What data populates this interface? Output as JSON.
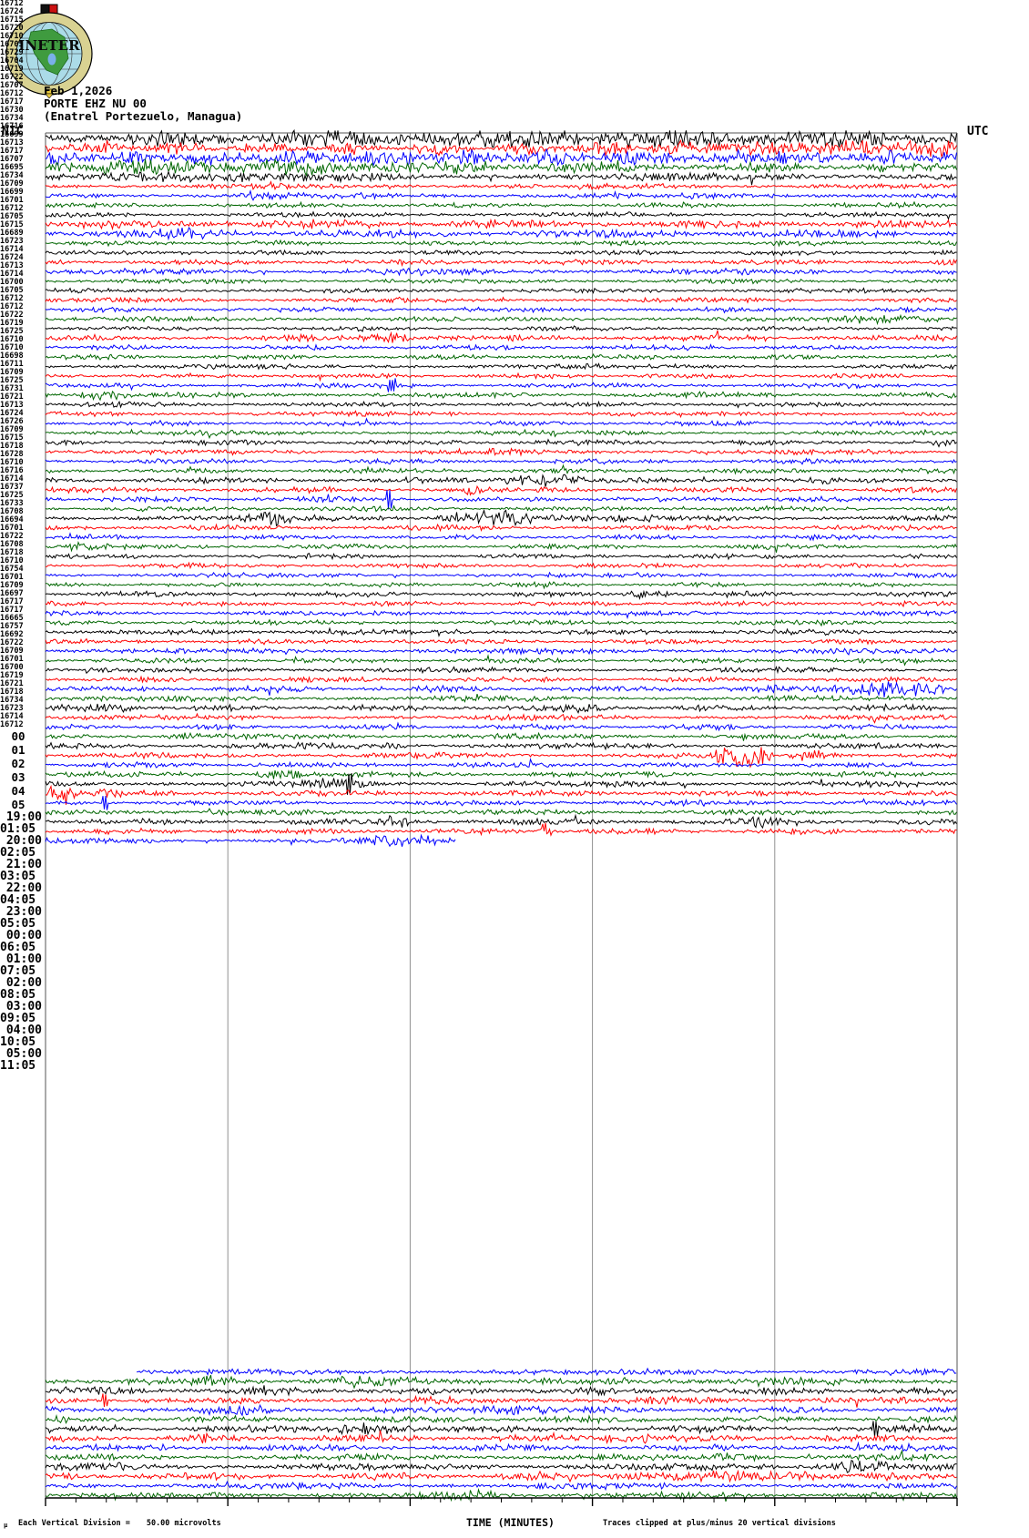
{
  "logo": {
    "text": "INETER"
  },
  "header": {
    "date": "Feb 1,2026",
    "station": "PORTE EHZ NU 00",
    "location": "(Enatrel Portezuelo, Managua)",
    "tz_left": "NIC",
    "tz_right": "UTC"
  },
  "footer": {
    "units_glyph": "µ",
    "scale_label": "Each Vertical Division =",
    "scale_value": "50.00 microvolts",
    "axis_title": "TIME (MINUTES)",
    "clip_note": "Traces clipped at plus/minus 20 vertical divisions"
  },
  "chart_data": {
    "type": "line",
    "subtype": "helicorder",
    "title": "PORTE EHZ NU 00",
    "subtitle": "(Enatrel Portezuelo, Managua)",
    "date": "Feb 1,2026",
    "xlabel": "TIME (MINUTES)",
    "x_ticks": [
      "00",
      "01",
      "02",
      "03",
      "04",
      "05"
    ],
    "x_range_minutes": [
      0,
      5
    ],
    "minor_ticks_per_major": 6,
    "left_timezone": "NIC",
    "right_timezone": "UTC",
    "palette": [
      "#000000",
      "#ff0000",
      "#0000ff",
      "#006600"
    ],
    "gridline_color": "#909090",
    "hour_labels": [
      {
        "row": 12,
        "left": "19:00",
        "right": "01:05"
      },
      {
        "row": 24,
        "left": "20:00",
        "right": "02:05"
      },
      {
        "row": 36,
        "left": "21:00",
        "right": "03:05"
      },
      {
        "row": 48,
        "left": "22:00",
        "right": "04:05"
      },
      {
        "row": 60,
        "left": "23:00",
        "right": "05:05"
      },
      {
        "row": 72,
        "left": "00:00",
        "right": "06:05"
      },
      {
        "row": 84,
        "left": "01:00",
        "right": "07:05"
      },
      {
        "row": 96,
        "left": "02:00",
        "right": "08:05"
      },
      {
        "row": 108,
        "left": "03:00",
        "right": "09:05"
      },
      {
        "row": 120,
        "left": "04:00",
        "right": "10:05"
      },
      {
        "row": 132,
        "left": "05:00",
        "right": "11:05"
      }
    ],
    "top_block": {
      "start_row": 0,
      "rows": [
        {
          "n": "16712",
          "a": 5.8
        },
        {
          "n": "16724",
          "a": 6.0
        },
        {
          "n": "16715",
          "a": 5.2
        },
        {
          "n": "16720",
          "a": 5.2
        },
        {
          "n": "16710",
          "a": 3.4,
          "b": [
            [
              0,
              0.33,
              4.2
            ]
          ]
        },
        {
          "n": "16705",
          "a": 2.2
        },
        {
          "n": "16729",
          "a": 2.4,
          "b": [
            [
              0.2,
              0.27,
              4.5
            ]
          ]
        },
        {
          "n": "16704",
          "a": 2.0
        },
        {
          "n": "16719",
          "a": 2.0
        },
        {
          "n": "16722",
          "a": 3.6
        },
        {
          "n": "16707",
          "a": 3.4,
          "b": [
            [
              0.08,
              0.22,
              4.6
            ]
          ]
        },
        {
          "n": "16712",
          "a": 2.0
        },
        {
          "n": "16717",
          "a": 2.0
        },
        {
          "n": "16730",
          "a": 2.2
        },
        {
          "n": "16734",
          "a": 2.6
        },
        {
          "n": "16716",
          "a": 2.0
        },
        {
          "n": "16699",
          "a": 1.8
        },
        {
          "n": "16713",
          "a": 2.0
        },
        {
          "n": "16717",
          "a": 2.0
        },
        {
          "n": "16707",
          "a": 2.0,
          "b": [
            [
              0.84,
              1,
              3.4
            ]
          ]
        },
        {
          "n": "16695",
          "a": 1.8
        },
        {
          "n": "16734",
          "a": 2.4,
          "b": [
            [
              0.33,
              0.42,
              4.0
            ]
          ]
        },
        {
          "n": "16709",
          "a": 2.0
        },
        {
          "n": "16699",
          "a": 2.0
        },
        {
          "n": "16701",
          "a": 2.0
        },
        {
          "n": "16712",
          "a": 2.0
        },
        {
          "n": "16705",
          "a": 2.0,
          "b": [
            [
              0.376,
              0.384,
              8.0
            ]
          ]
        },
        {
          "n": "16715",
          "a": 2.2,
          "b": [
            [
              0.03,
              0.1,
              3.8
            ]
          ]
        },
        {
          "n": "16689",
          "a": 2.0
        },
        {
          "n": "16723",
          "a": 2.0
        },
        {
          "n": "16714",
          "a": 2.0
        },
        {
          "n": "16724",
          "a": 2.0
        },
        {
          "n": "16713",
          "a": 2.2
        },
        {
          "n": "16714",
          "a": 2.2,
          "b": [
            [
              0.44,
              0.58,
              3.2
            ]
          ]
        },
        {
          "n": "16700",
          "a": 2.0
        },
        {
          "n": "16705",
          "a": 2.0
        },
        {
          "n": "16712",
          "a": 2.4,
          "b": [
            [
              0.49,
              0.61,
              5.0
            ]
          ]
        },
        {
          "n": "16712",
          "a": 2.2,
          "b": [
            [
              0.455,
              0.485,
              4.2
            ]
          ]
        },
        {
          "n": "16722",
          "a": 2.2,
          "b": [
            [
              0.374,
              0.38,
              12.0
            ]
          ]
        },
        {
          "n": "16719",
          "a": 2.0
        },
        {
          "n": "16725",
          "a": 2.6,
          "b": [
            [
              0.21,
              0.28,
              6.0
            ],
            [
              0.43,
              0.55,
              6.2
            ]
          ]
        },
        {
          "n": "16710",
          "a": 2.2
        },
        {
          "n": "16710",
          "a": 2.0
        },
        {
          "n": "16698",
          "a": 2.0,
          "b": [
            [
              0,
              0.08,
              3.4
            ]
          ]
        },
        {
          "n": "16711",
          "a": 2.0
        },
        {
          "n": "16709",
          "a": 2.0
        },
        {
          "n": "16725",
          "a": 2.0
        },
        {
          "n": "16731",
          "a": 2.0
        },
        {
          "n": "16721",
          "a": 2.2,
          "b": [
            [
              0.63,
              0.69,
              3.6
            ]
          ]
        },
        {
          "n": "16713",
          "a": 2.0
        },
        {
          "n": "16724",
          "a": 2.0
        },
        {
          "n": "16726",
          "a": 2.0
        },
        {
          "n": "16709",
          "a": 2.2
        },
        {
          "n": "16715",
          "a": 2.0
        },
        {
          "n": "16718",
          "a": 2.2
        },
        {
          "n": "16728",
          "a": 2.0
        },
        {
          "n": "16710",
          "a": 2.2
        },
        {
          "n": "16716",
          "a": 2.0
        },
        {
          "n": "16714",
          "a": 2.4,
          "b": [
            [
              0.74,
              0.85,
              3.0
            ],
            [
              0.85,
              1,
              6.0
            ]
          ]
        },
        {
          "n": "16737",
          "a": 2.2
        },
        {
          "n": "16725",
          "a": 2.4,
          "b": [
            [
              0,
              0.12,
              3.4
            ],
            [
              0.55,
              0.62,
              5.0
            ]
          ]
        },
        {
          "n": "16733",
          "a": 2.2
        },
        {
          "n": "16708",
          "a": 2.2
        },
        {
          "n": "16694",
          "a": 2.2,
          "b": [
            [
              0.12,
              0.18,
              3.6
            ]
          ]
        },
        {
          "n": "16701",
          "a": 2.4,
          "b": [
            [
              0.32,
              0.4,
              3.2
            ]
          ]
        },
        {
          "n": "16722",
          "a": 2.4,
          "b": [
            [
              0.73,
              0.8,
              11.0
            ],
            [
              0.8,
              0.88,
              4.0
            ]
          ]
        },
        {
          "n": "16708",
          "a": 2.2
        },
        {
          "n": "16718",
          "a": 2.3,
          "b": [
            [
              0.23,
              0.29,
              4.6
            ]
          ]
        },
        {
          "n": "16710",
          "a": 2.4,
          "b": [
            [
              0.25,
              0.37,
              5.0
            ],
            [
              0.33,
              0.336,
              12.0
            ]
          ]
        },
        {
          "n": "16754",
          "a": 2.4,
          "b": [
            [
              0,
              0.04,
              10.0
            ],
            [
              0.04,
              0.11,
              4.0
            ]
          ]
        },
        {
          "n": "16701",
          "a": 2.2,
          "b": [
            [
              0.062,
              0.068,
              8.0
            ]
          ]
        },
        {
          "n": "16709",
          "a": 2.2
        },
        {
          "n": "16697",
          "a": 2.4,
          "b": [
            [
              0.35,
              0.41,
              4.2
            ],
            [
              0.74,
              0.82,
              4.6
            ]
          ]
        },
        {
          "n": "16717",
          "a": 2.3,
          "b": [
            [
              0.54,
              0.56,
              9.0
            ]
          ]
        },
        {
          "n": "16717",
          "a": 2.3,
          "e": 0.45,
          "b": [
            [
              0.33,
              0.45,
              4.5
            ]
          ]
        }
      ]
    },
    "bottom_block": {
      "start_row": 130,
      "rows": [
        {
          "n": "16665",
          "a": 2.4,
          "s": 0.1
        },
        {
          "n": "16757",
          "a": 3.2,
          "b": [
            [
              0.15,
              0.21,
              6.0
            ],
            [
              0.31,
              0.38,
              5.0
            ]
          ]
        },
        {
          "n": "16692",
          "a": 3.0,
          "b": [
            [
              0.22,
              0.27,
              6.0
            ]
          ]
        },
        {
          "n": "16722",
          "a": 2.8,
          "b": [
            [
              0.062,
              0.068,
              8.0
            ]
          ]
        },
        {
          "n": "16709",
          "a": 2.6,
          "b": [
            [
              0.15,
              0.27,
              4.5
            ],
            [
              0.45,
              0.6,
              4.0
            ]
          ]
        },
        {
          "n": "16701",
          "a": 2.6
        },
        {
          "n": "16700",
          "a": 2.8,
          "b": [
            [
              0.3,
              0.41,
              4.5
            ],
            [
              0.908,
              0.914,
              9.0
            ]
          ]
        },
        {
          "n": "16719",
          "a": 2.8,
          "b": [
            [
              0.172,
              0.178,
              6.0
            ],
            [
              0.55,
              0.75,
              3.5
            ]
          ]
        },
        {
          "n": "16721",
          "a": 2.6
        },
        {
          "n": "16718",
          "a": 2.6,
          "b": [
            [
              0.69,
              0.8,
              3.6
            ]
          ]
        },
        {
          "n": "16734",
          "a": 2.8,
          "b": [
            [
              0.84,
              0.95,
              5.0
            ]
          ]
        },
        {
          "n": "16723",
          "a": 3.0,
          "b": [
            [
              0.58,
              0.95,
              4.0
            ]
          ]
        },
        {
          "n": "16714",
          "a": 2.6
        },
        {
          "n": "16712",
          "a": 2.6,
          "b": [
            [
              0.4,
              0.52,
              4.0
            ]
          ]
        }
      ]
    }
  }
}
